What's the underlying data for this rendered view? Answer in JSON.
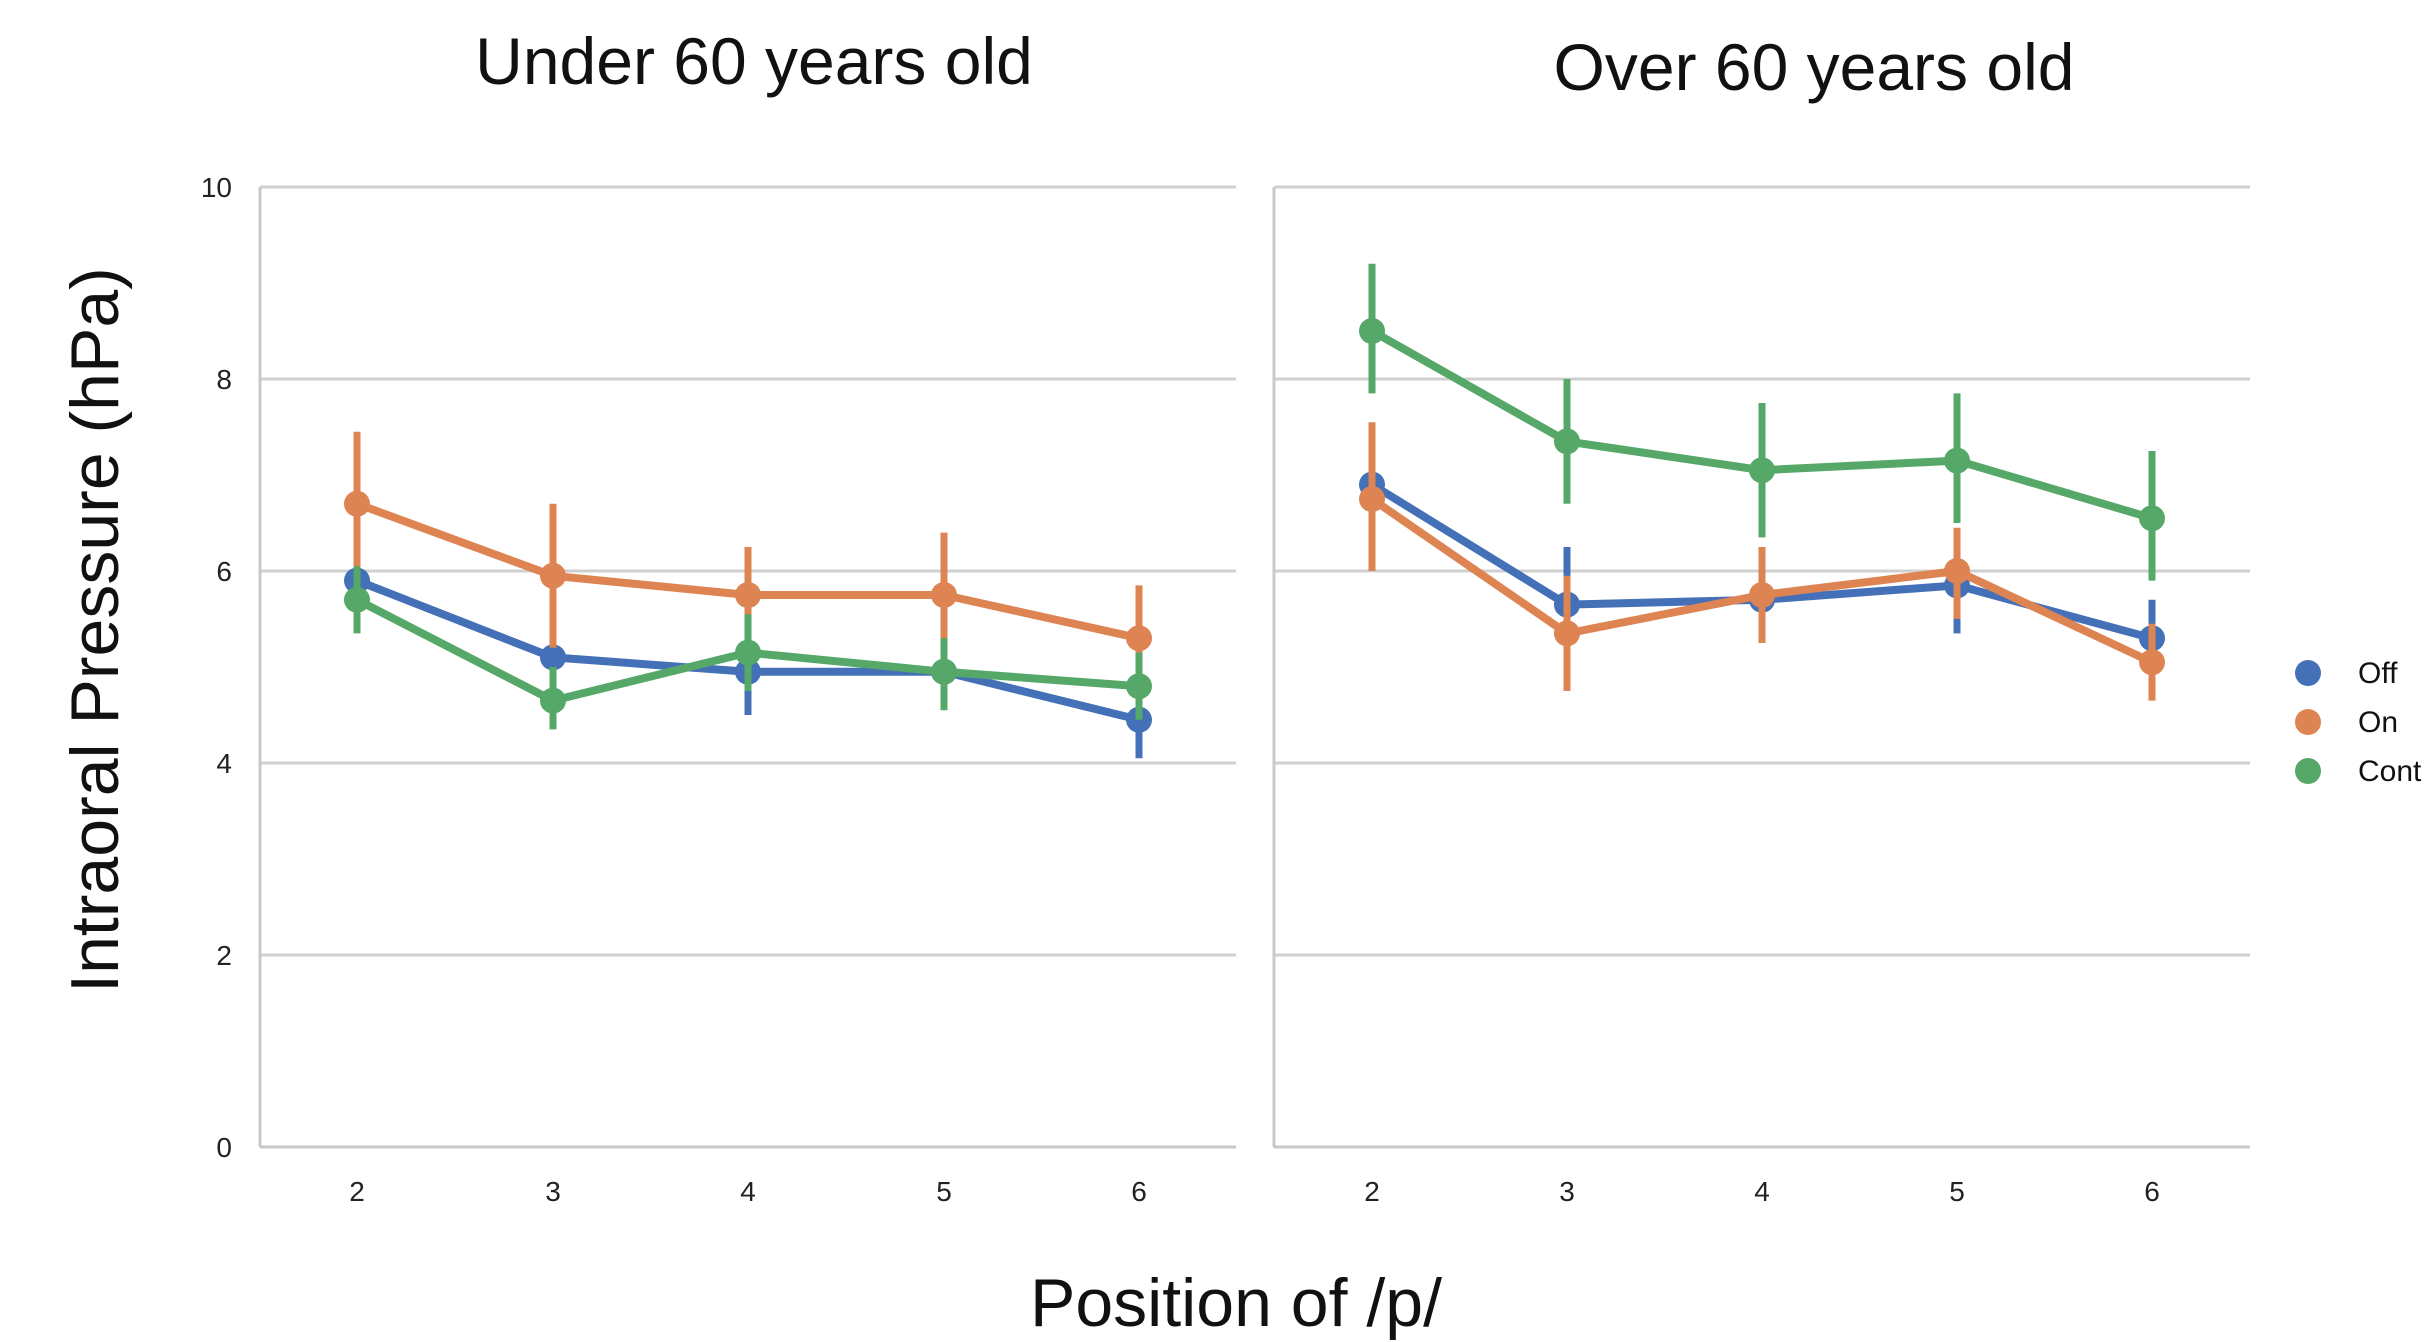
{
  "chart_data": {
    "type": "line",
    "ylabel": "Intraoral Pressure (hPa)",
    "xlabel": "Position of /p/",
    "ylim": [
      0,
      10
    ],
    "yticks": [
      0,
      2,
      4,
      6,
      8,
      10
    ],
    "categories": [
      "2",
      "3",
      "4",
      "5",
      "6"
    ],
    "grid": "horizontal",
    "legend_placement": "right",
    "legend": [
      {
        "name": "Off",
        "color": "#4470b8"
      },
      {
        "name": "On",
        "color": "#dd8452"
      },
      {
        "name": "Cont",
        "color": "#55a868"
      }
    ],
    "panels": [
      {
        "title": "Under 60 years old",
        "series": [
          {
            "name": "Off",
            "color": "#4470b8",
            "values": [
              5.9,
              5.1,
              4.95,
              4.95,
              4.45
            ],
            "err_low": [
              5.6,
              4.75,
              4.5,
              4.6,
              4.05
            ],
            "err_high": [
              6.2,
              5.45,
              5.35,
              5.25,
              4.8
            ]
          },
          {
            "name": "On",
            "color": "#dd8452",
            "values": [
              6.7,
              5.95,
              5.75,
              5.75,
              5.3
            ],
            "err_low": [
              5.95,
              5.2,
              5.25,
              5.1,
              4.75
            ],
            "err_high": [
              7.45,
              6.7,
              6.25,
              6.4,
              5.85
            ]
          },
          {
            "name": "Cont",
            "color": "#55a868",
            "values": [
              5.7,
              4.65,
              5.15,
              4.95,
              4.8
            ],
            "err_low": [
              5.35,
              4.35,
              4.75,
              4.55,
              4.45
            ],
            "err_high": [
              6.05,
              5.0,
              5.55,
              5.3,
              5.15
            ]
          }
        ]
      },
      {
        "title": "Over 60 years old",
        "series": [
          {
            "name": "Off",
            "color": "#4470b8",
            "values": [
              6.9,
              5.65,
              5.7,
              5.85,
              5.3
            ],
            "err_low": [
              6.5,
              5.05,
              5.25,
              5.35,
              4.9
            ],
            "err_high": [
              7.3,
              6.25,
              6.15,
              6.3,
              5.7
            ]
          },
          {
            "name": "On",
            "color": "#dd8452",
            "values": [
              6.75,
              5.35,
              5.75,
              6.0,
              5.05
            ],
            "err_low": [
              6.0,
              4.75,
              5.25,
              5.5,
              4.65
            ],
            "err_high": [
              7.55,
              5.95,
              6.25,
              6.45,
              5.45
            ]
          },
          {
            "name": "Cont",
            "color": "#55a868",
            "values": [
              8.5,
              7.35,
              7.05,
              7.15,
              6.55
            ],
            "err_low": [
              7.85,
              6.7,
              6.35,
              6.5,
              5.9
            ],
            "err_high": [
              9.2,
              8.0,
              7.75,
              7.85,
              7.25
            ]
          }
        ]
      }
    ]
  }
}
